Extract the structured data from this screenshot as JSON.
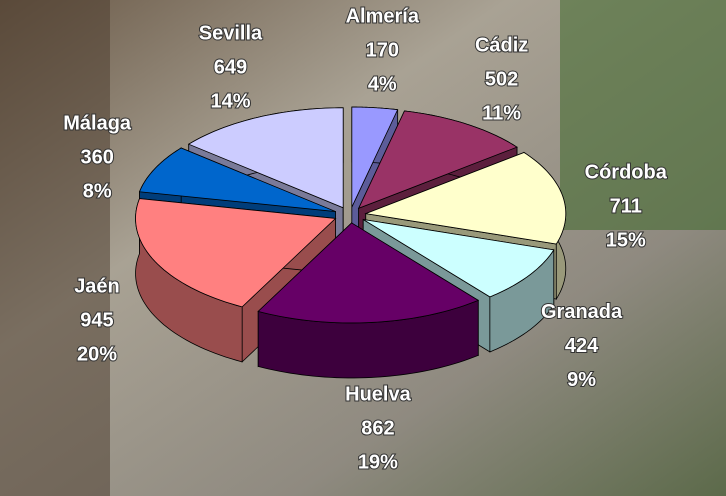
{
  "chart_data": {
    "type": "pie3d",
    "categories": [
      "Almería",
      "Cádiz",
      "Córdoba",
      "Granada",
      "Huelva",
      "Jaén",
      "Málaga",
      "Sevilla"
    ],
    "values": [
      170,
      502,
      711,
      424,
      862,
      945,
      360,
      649
    ],
    "percents": [
      {
        "value": 4,
        "label": "4%"
      },
      {
        "value": 11,
        "label": "11%"
      },
      {
        "value": 15,
        "label": "15%"
      },
      {
        "value": 9,
        "label": "9%"
      },
      {
        "value": 19,
        "label": "19%"
      },
      {
        "value": 20,
        "label": "20%"
      },
      {
        "value": 8,
        "label": "8%"
      },
      {
        "value": 14,
        "label": "14%"
      }
    ],
    "colors": [
      "#9999ff",
      "#993366",
      "#ffffcc",
      "#ccffff",
      "#660066",
      "#ff8080",
      "#0066cc",
      "#ccccff"
    ]
  }
}
